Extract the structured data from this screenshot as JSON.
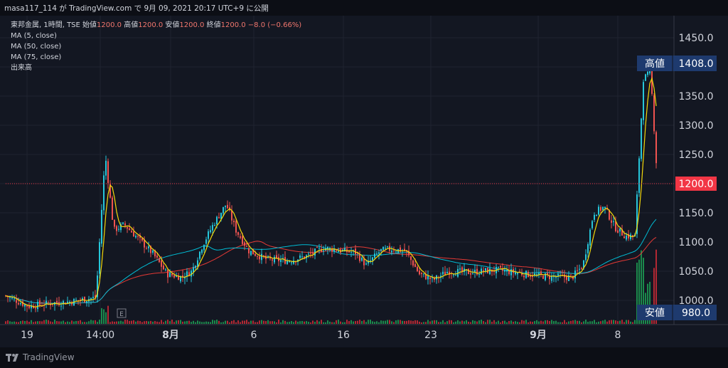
{
  "header": {
    "text": "masa117_114 が TradingView.com で 9月 09, 2021 20:17 UTC+9 に公開"
  },
  "legend": {
    "symbol": "東邦金属, 1時間, TSE",
    "open_label": "始値",
    "open": "1200.0",
    "high_label": "高値",
    "high": "1200.0",
    "low_label": "安値",
    "low": "1200.0",
    "close_label": "終値",
    "close": "1200.0",
    "change": "−8.0 (−0.66%)",
    "ma5": "MA (5, close)",
    "ma50": "MA (50, close)",
    "ma75": "MA (75, close)",
    "volume": "出来高"
  },
  "footer": {
    "brand": "TradingView"
  },
  "colors": {
    "up": "#26c6da",
    "down": "#ef5350",
    "ma5": "#f5d90a",
    "ma50": "#00bcd4",
    "ma75": "#e53935",
    "label_bg": "#1e3a6e",
    "price_label_bg": "#f23645"
  },
  "chart_data": {
    "type": "candlestick",
    "y_ticks": [
      "1000.0",
      "1050.0",
      "1100.0",
      "1150.0",
      "1200.0",
      "1250.0",
      "1300.0",
      "1350.0",
      "1400.0",
      "1450.0"
    ],
    "ylim": [
      978,
      1470
    ],
    "x_tick_labels": [
      {
        "label": "19",
        "bold": false
      },
      {
        "label": "14:00",
        "bold": false
      },
      {
        "label": "8月",
        "bold": true
      },
      {
        "label": "6",
        "bold": false
      },
      {
        "label": "16",
        "bold": false
      },
      {
        "label": "23",
        "bold": false
      },
      {
        "label": "9月",
        "bold": true
      },
      {
        "label": "8",
        "bold": false
      }
    ],
    "current_price": "1200.0",
    "high_marker": {
      "label": "高値",
      "value": "1408.0"
    },
    "low_marker": {
      "label": "安値",
      "value": "980.0"
    },
    "event_marker": "E",
    "series": [
      {
        "name": "MA (5, close)"
      },
      {
        "name": "MA (50, close)"
      },
      {
        "name": "MA (75, close)"
      },
      {
        "name": "出来高"
      }
    ]
  }
}
